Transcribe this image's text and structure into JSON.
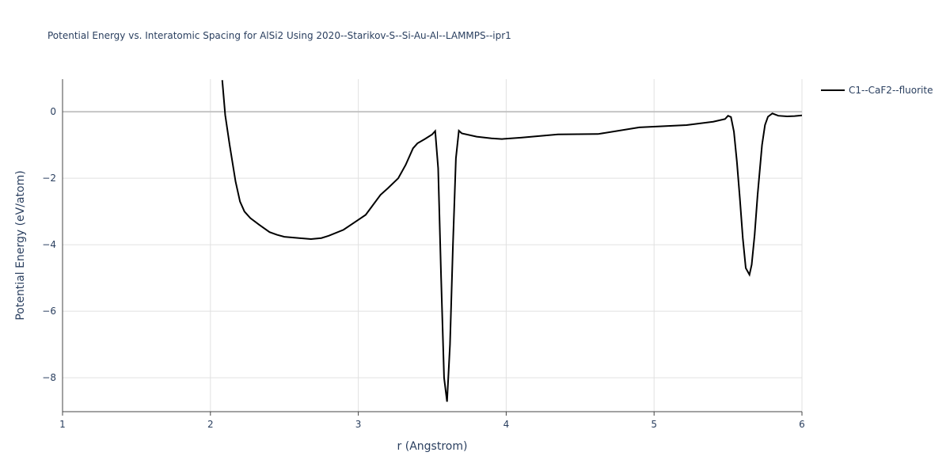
{
  "chart_data": {
    "type": "line",
    "title": "Potential Energy vs. Interatomic Spacing for AlSi2 Using 2020--Starikov-S--Si-Au-Al--LAMMPS--ipr1",
    "xlabel": "r (Angstrom)",
    "ylabel": "Potential Energy (eV/atom)",
    "xlim": [
      1,
      6
    ],
    "xticks": [
      1,
      2,
      3,
      4,
      5,
      6
    ],
    "ylim": [
      -9.02,
      0.98
    ],
    "yticks": [
      {
        "value": -8,
        "label": "−8"
      },
      {
        "value": -6,
        "label": "−6"
      },
      {
        "value": -4,
        "label": "−4"
      },
      {
        "value": -2,
        "label": "−2"
      },
      0
    ],
    "grid": true,
    "legend": "top-right",
    "x": [
      2.08,
      2.1,
      2.13,
      2.17,
      2.2,
      2.23,
      2.27,
      2.33,
      2.4,
      2.45,
      2.5,
      2.6,
      2.68,
      2.75,
      2.8,
      2.9,
      3.0,
      3.05,
      3.1,
      3.15,
      3.2,
      3.27,
      3.32,
      3.37,
      3.4,
      3.45,
      3.5,
      3.52,
      3.54,
      3.56,
      3.58,
      3.6,
      3.62,
      3.64,
      3.66,
      3.68,
      3.7,
      3.8,
      3.9,
      3.97,
      4.1,
      4.35,
      4.62,
      4.9,
      5.22,
      5.4,
      5.48,
      5.5,
      5.52,
      5.54,
      5.56,
      5.58,
      5.6,
      5.62,
      5.645,
      5.66,
      5.68,
      5.7,
      5.73,
      5.75,
      5.77,
      5.8,
      5.84,
      5.9,
      5.95,
      6.0
    ],
    "series": [
      {
        "name": "C1--CaF2--fluorite",
        "color": "#000000",
        "values": [
          0.95,
          -0.1,
          -1.0,
          -2.1,
          -2.7,
          -3.0,
          -3.2,
          -3.4,
          -3.62,
          -3.7,
          -3.76,
          -3.8,
          -3.83,
          -3.8,
          -3.73,
          -3.55,
          -3.25,
          -3.1,
          -2.8,
          -2.5,
          -2.3,
          -2.0,
          -1.6,
          -1.1,
          -0.95,
          -0.82,
          -0.68,
          -0.58,
          -1.7,
          -5.0,
          -8.0,
          -8.72,
          -7.0,
          -4.0,
          -1.4,
          -0.57,
          -0.65,
          -0.75,
          -0.8,
          -0.82,
          -0.78,
          -0.68,
          -0.67,
          -0.47,
          -0.4,
          -0.3,
          -0.22,
          -0.12,
          -0.16,
          -0.6,
          -1.5,
          -2.6,
          -3.8,
          -4.7,
          -4.9,
          -4.6,
          -3.7,
          -2.5,
          -1.0,
          -0.4,
          -0.15,
          -0.05,
          -0.12,
          -0.14,
          -0.13,
          -0.11
        ]
      }
    ]
  }
}
